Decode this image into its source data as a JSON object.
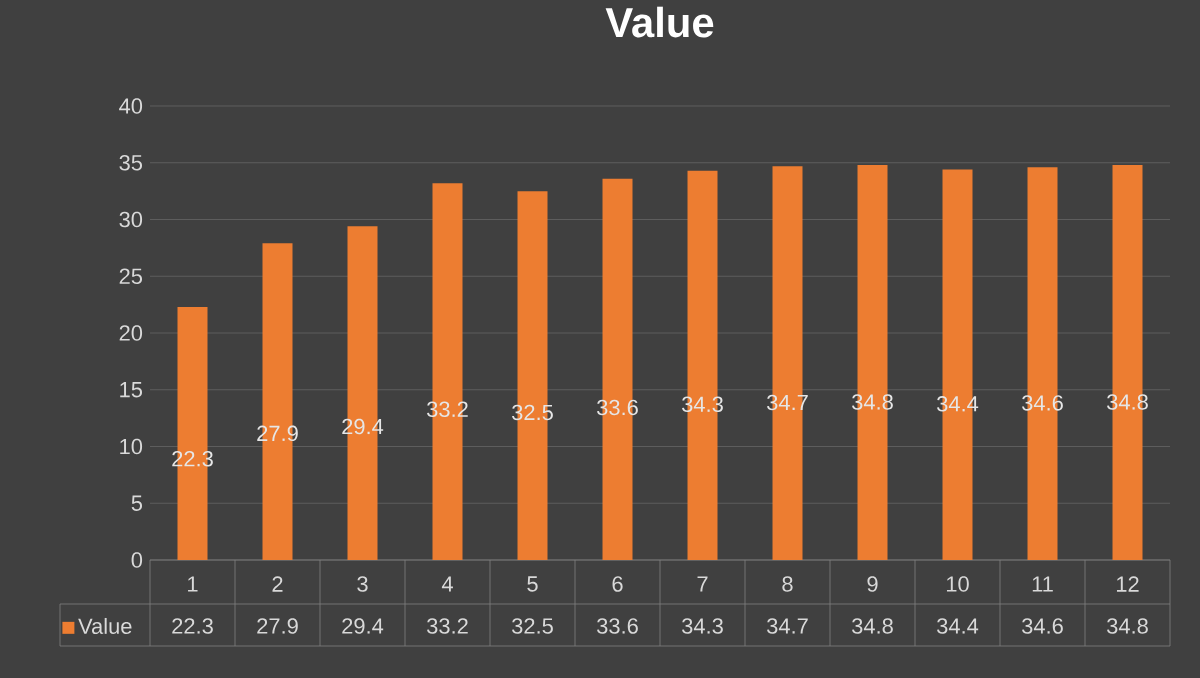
{
  "chart_data": {
    "type": "bar",
    "title": "Value",
    "categories": [
      "1",
      "2",
      "3",
      "4",
      "5",
      "6",
      "7",
      "8",
      "9",
      "10",
      "11",
      "12"
    ],
    "series": [
      {
        "name": "Value",
        "color": "#ed7d31",
        "values": [
          22.3,
          27.9,
          29.4,
          33.2,
          32.5,
          33.6,
          34.3,
          34.7,
          34.8,
          34.4,
          34.6,
          34.8
        ],
        "value_labels": [
          "22.3",
          "27.9",
          "29.4",
          "33.2",
          "32.5",
          "33.6",
          "34.3",
          "34.7",
          "34.8",
          "34.4",
          "34.6",
          "34.8"
        ]
      }
    ],
    "ylim": [
      0,
      40
    ],
    "yticks": [
      0,
      5,
      10,
      15,
      20,
      25,
      30,
      35,
      40
    ],
    "grid": "y",
    "data_labels": true,
    "legend": "bottom"
  }
}
